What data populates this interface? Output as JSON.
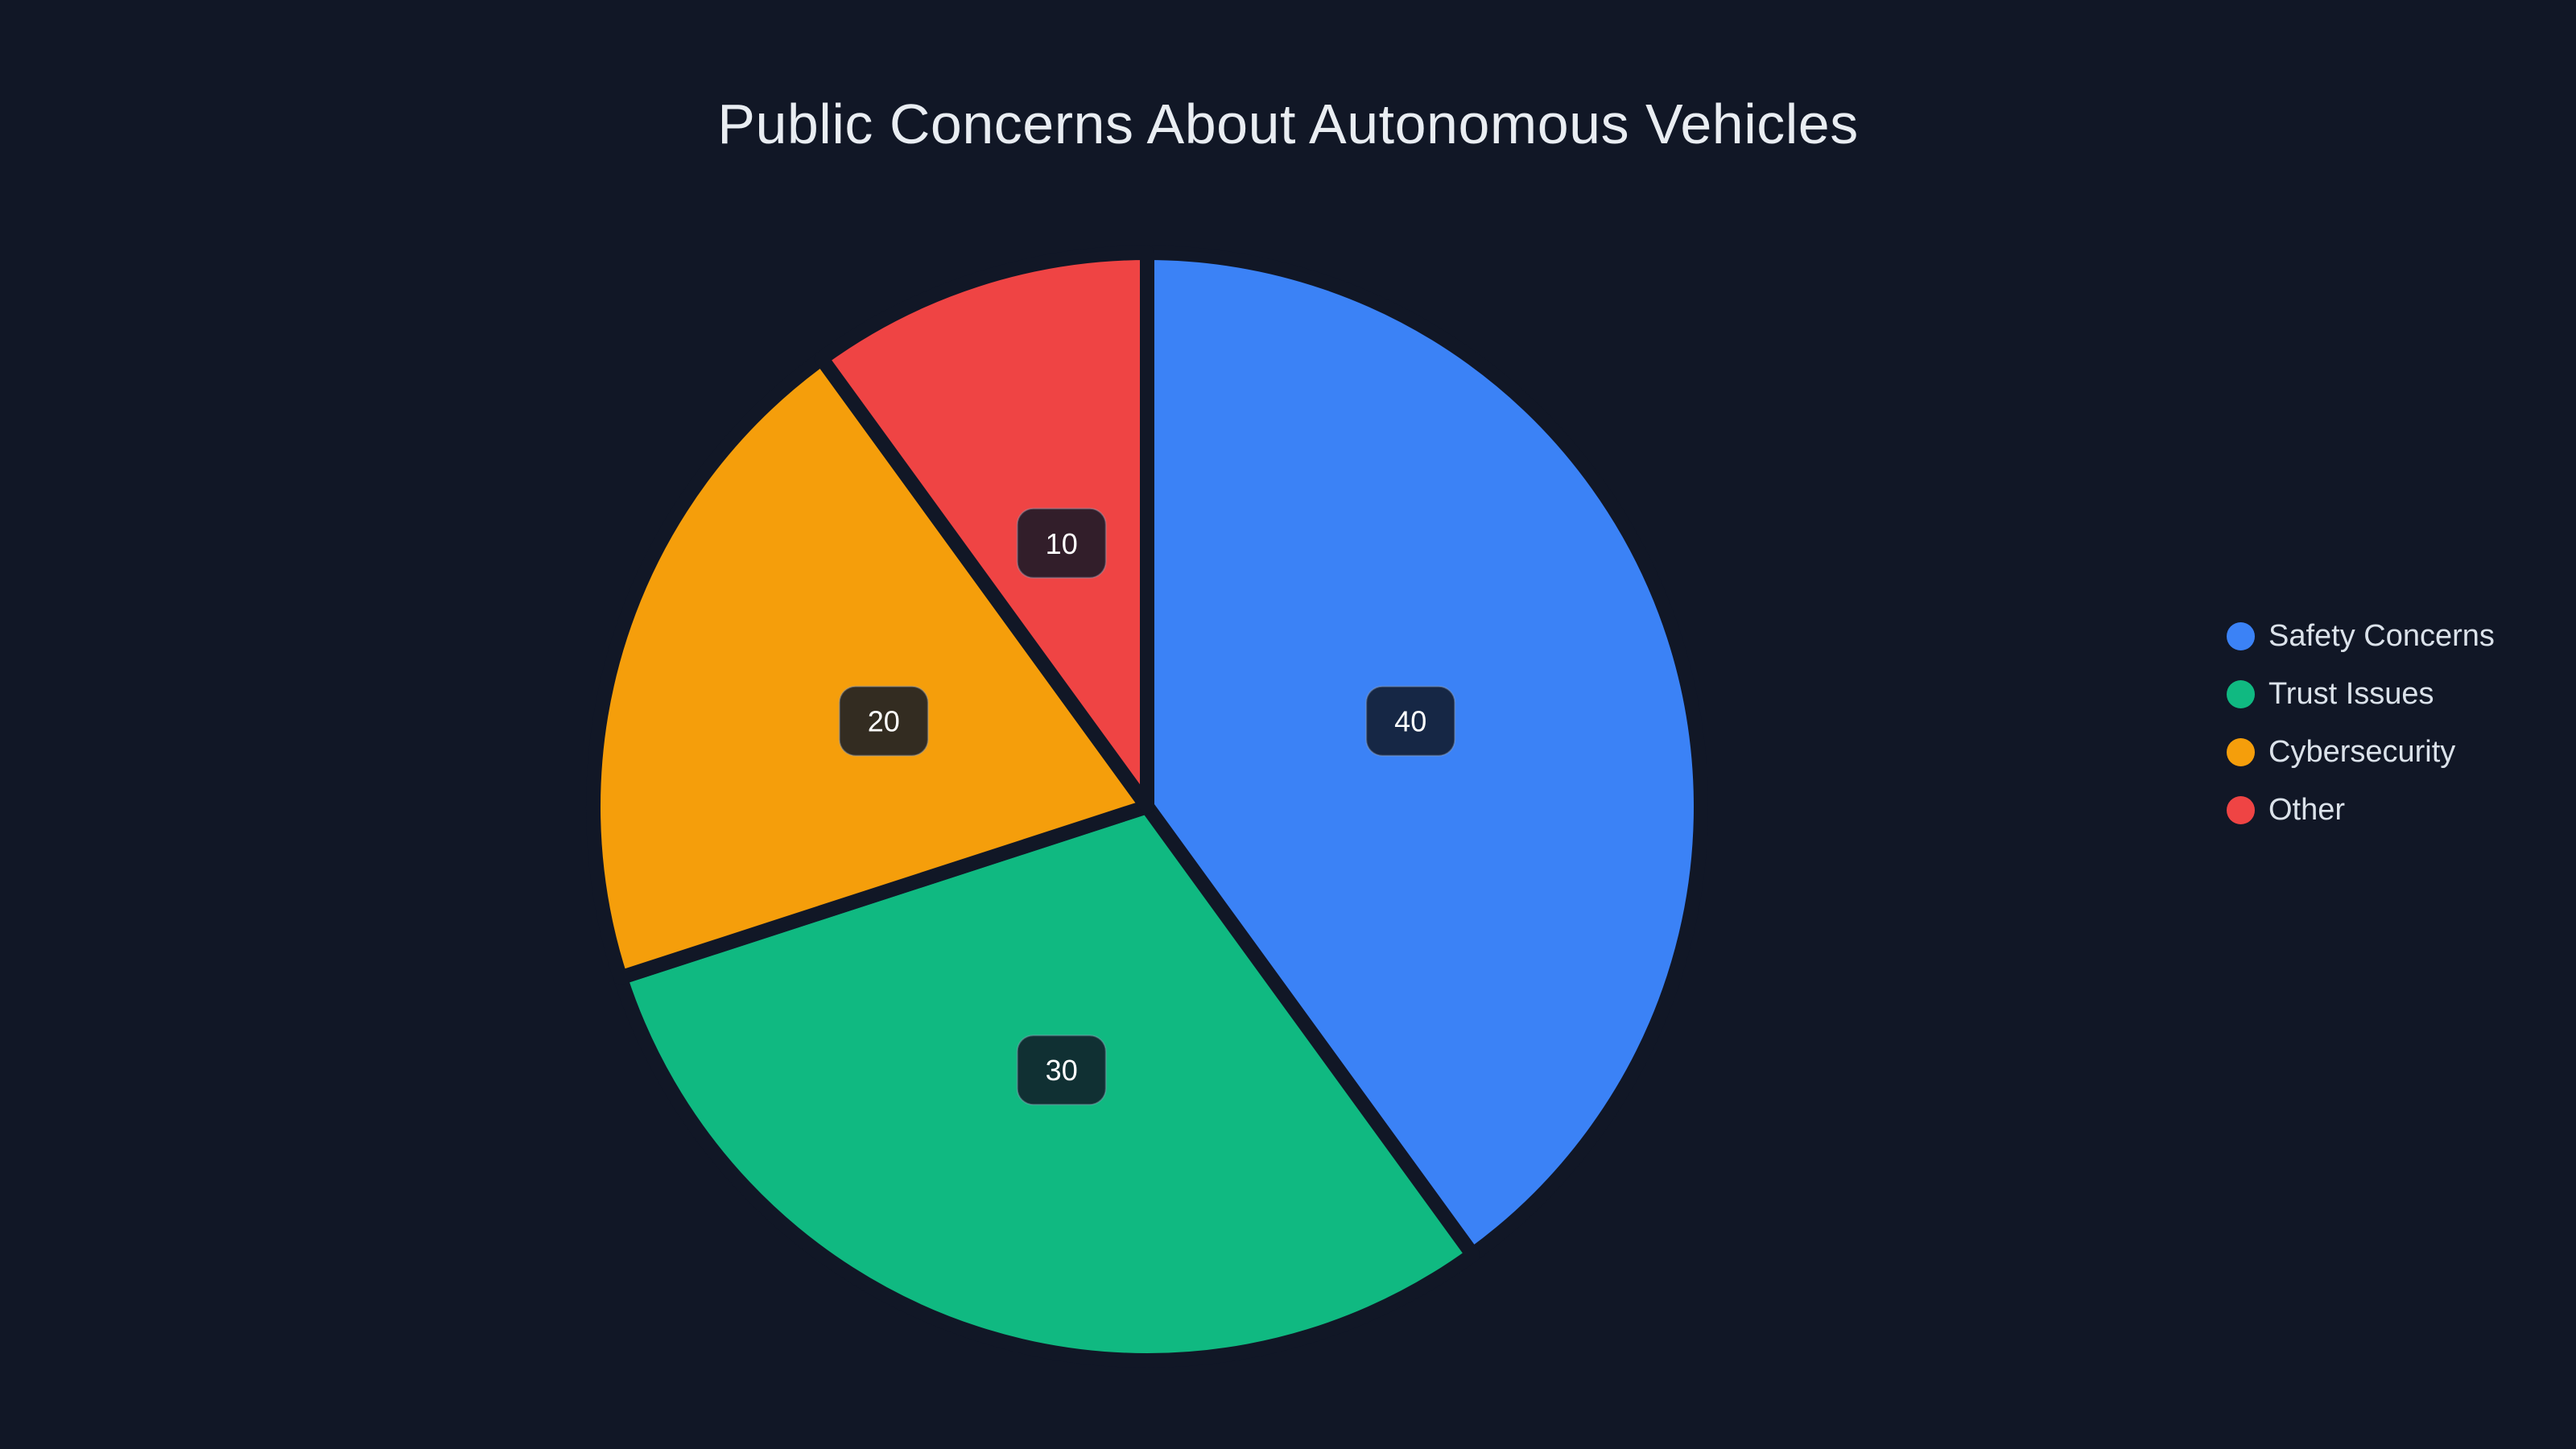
{
  "page": {
    "background": "#111726"
  },
  "title": {
    "text": "Public Concerns About Autonomous Vehicles",
    "color": "#e9edf2"
  },
  "chart_data": {
    "type": "pie",
    "title": "Public Concerns About Autonomous Vehicles",
    "labels": [
      "Safety Concerns",
      "Trust Issues",
      "Cybersecurity",
      "Other"
    ],
    "values": [
      40,
      30,
      20,
      10
    ],
    "value_labels": [
      "40",
      "30",
      "20",
      "10"
    ],
    "colors": [
      "#3b82f6",
      "#10b981",
      "#f59e0b",
      "#ef4444"
    ],
    "start_angle": "top",
    "direction": "clockwise",
    "legend_position": "right",
    "slice_border_color": "#111726",
    "slice_border_width": 18,
    "value_chip_bg": "rgba(17, 23, 38, 0.85)",
    "value_chip_border": "rgba(148, 163, 184, 0.4)",
    "value_chip_text_color": "#ffffff",
    "legend_text_color": "#dbe2ea"
  }
}
